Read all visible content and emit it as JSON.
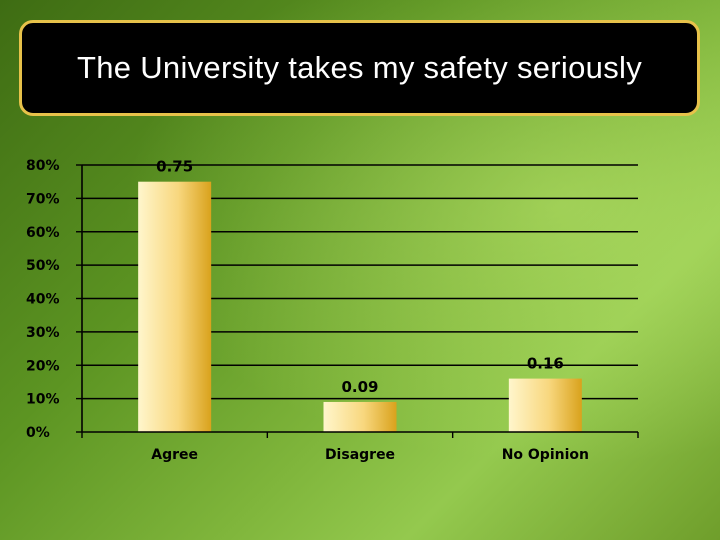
{
  "chart_data": {
    "type": "bar",
    "title": "The University takes my safety seriously",
    "categories": [
      "Agree",
      "Disagree",
      "No Opinion"
    ],
    "values": [
      0.75,
      0.09,
      0.16
    ],
    "data_labels": [
      "0.75",
      "0.09",
      "0.16"
    ],
    "ylim": [
      0,
      0.8
    ],
    "yticks": [
      0,
      0.1,
      0.2,
      0.3,
      0.4,
      0.5,
      0.6,
      0.7,
      0.8
    ],
    "ytick_labels": [
      "0%",
      "10%",
      "20%",
      "30%",
      "40%",
      "50%",
      "60%",
      "70%",
      "80%"
    ],
    "grid": true,
    "legend": "none",
    "colors": {
      "bar_light": "#fff3c4",
      "bar_dark": "#d9a21c",
      "gridline": "#000000"
    }
  }
}
